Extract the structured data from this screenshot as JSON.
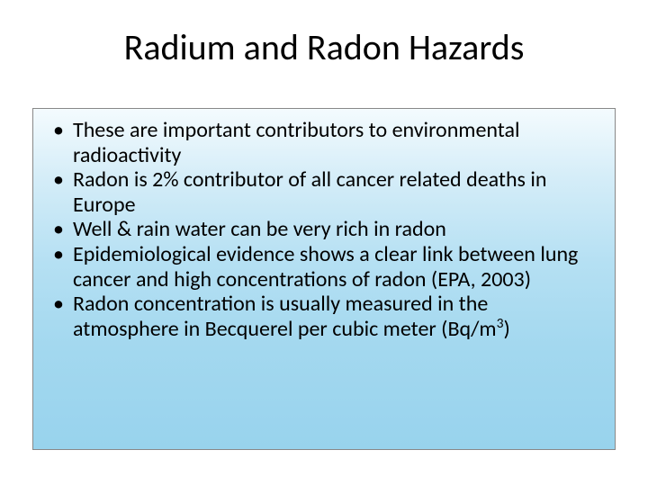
{
  "slide": {
    "title": "Radium and Radon Hazards",
    "title_fontsize": 40,
    "title_color": "#000000",
    "background_color": "#ffffff",
    "content_box": {
      "gradient_top": "#f4fbfe",
      "gradient_mid1": "#d5edf8",
      "gradient_mid2": "#b5e0f3",
      "gradient_mid3": "#a3d8ef",
      "gradient_bottom": "#98d3ed",
      "border_color": "#888888"
    },
    "bullets": [
      {
        "text": "These are important contributors to environmental radioactivity"
      },
      {
        "text": "Radon is 2% contributor of all cancer related deaths in Europe"
      },
      {
        "text": "Well & rain water can be very rich in radon"
      },
      {
        "text": "Epidemiological evidence shows a clear link between lung cancer and high concentrations of radon (EPA, 2003)"
      },
      {
        "text_html": "Radon concentration is usually measured in the atmosphere in Becquerel per cubic meter (Bq/m<sup>3</sup>)"
      }
    ],
    "bullet_fontsize": 24,
    "bullet_color": "#000000",
    "bullet_marker": "•"
  }
}
